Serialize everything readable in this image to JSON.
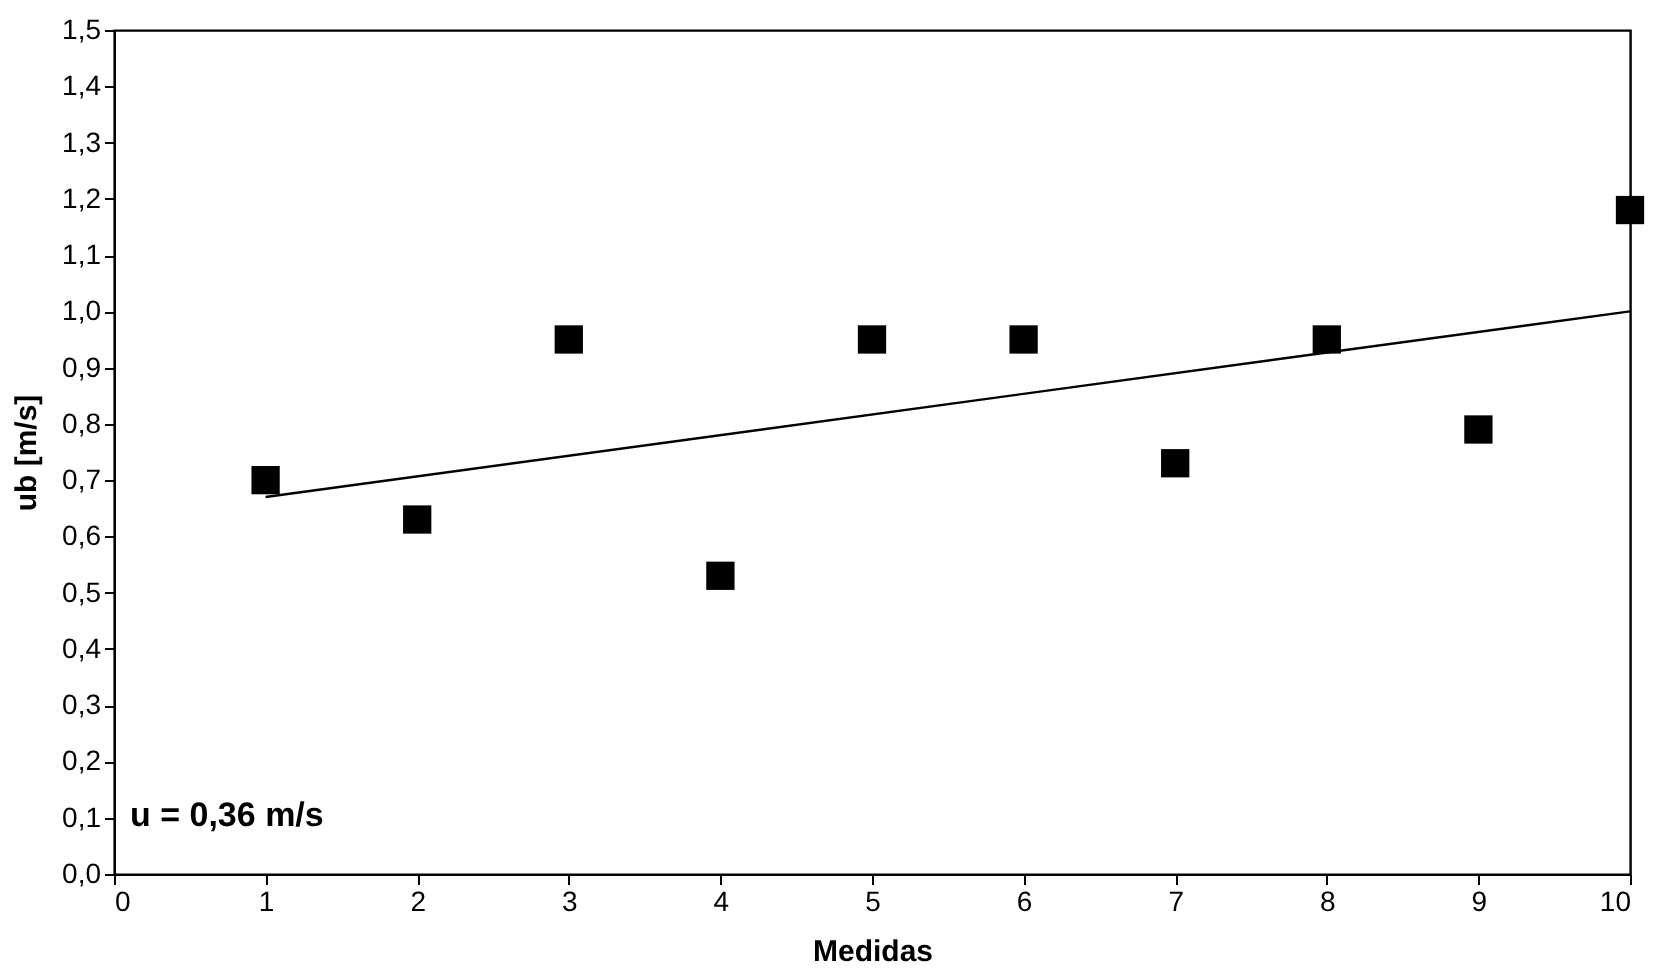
{
  "chart_data": {
    "type": "scatter",
    "xlabel": "Medidas",
    "ylabel": "ub [m/s]",
    "annotations": [
      "u = 0,36 m/s"
    ],
    "x": [
      1,
      2,
      3,
      4,
      5,
      6,
      7,
      8,
      9,
      10
    ],
    "series": [
      {
        "color": "#000000",
        "values": [
          0.7,
          0.63,
          0.95,
          0.53,
          0.95,
          0.95,
          0.73,
          0.95,
          0.79,
          1.18
        ],
        "marker": "square"
      },
      {
        "type": "line",
        "color": "#000000",
        "x": [
          1,
          10
        ],
        "values": [
          0.67,
          1.0
        ],
        "marker": "none",
        "line_style": "solid"
      }
    ],
    "xlim": [
      0,
      10
    ],
    "xticks": [
      0,
      1,
      2,
      3,
      4,
      5,
      6,
      7,
      8,
      9,
      10
    ],
    "ylim": [
      0,
      1.5
    ],
    "yticks": [
      {
        "value": 0,
        "label": "0,0"
      },
      {
        "value": 0.1,
        "label": "0,1"
      },
      {
        "value": 0.2,
        "label": "0,2"
      },
      {
        "value": 0.3,
        "label": "0,3"
      },
      {
        "value": 0.4,
        "label": "0,4"
      },
      {
        "value": 0.5,
        "label": "0,5"
      },
      {
        "value": 0.6,
        "label": "0,6"
      },
      {
        "value": 0.7,
        "label": "0,7"
      },
      {
        "value": 0.8,
        "label": "0,8"
      },
      {
        "value": 0.9,
        "label": "0,9"
      },
      {
        "value": 1,
        "label": "1,0"
      },
      {
        "value": 1.1,
        "label": "1,1"
      },
      {
        "value": 1.2,
        "label": "1,2"
      },
      {
        "value": 1.3,
        "label": "1,3"
      },
      {
        "value": 1.4,
        "label": "1,4"
      },
      {
        "value": 1.5,
        "label": "1,5"
      }
    ],
    "grid": false
  }
}
